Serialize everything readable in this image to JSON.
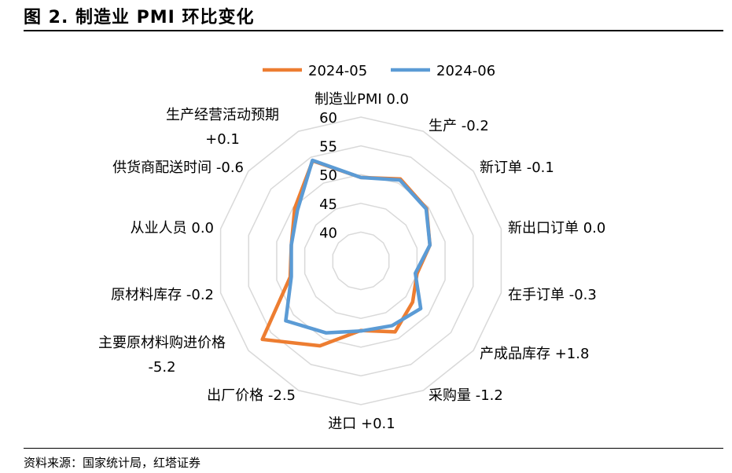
{
  "figure": {
    "title": "图 2. 制造业 PMI 环比变化",
    "source": "资料来源：国家统计局，红塔证券"
  },
  "chart_data": {
    "type": "radar",
    "categories": [
      "制造业PMI 0.0",
      "生产 -0.2",
      "新订单 -0.1",
      "新出口订单 0.0",
      "在手订单 -0.3",
      "产成品库存 +1.8",
      "采购量 -1.2",
      "进口 +0.1",
      "出厂价格 -2.5",
      "主要原材料购进价格 -5.2",
      "原材料库存 -0.2",
      "从业人员 0.0",
      "供货商配送时间 -0.6",
      "生产经营活动预期 +0.1"
    ],
    "r_ticks": [
      "40",
      "45",
      "50",
      "55",
      "60"
    ],
    "rlim": [
      35,
      60
    ],
    "grid": true,
    "legend_position": "top",
    "series": [
      {
        "name": "2024-05",
        "color": "#ED7D31",
        "values": [
          49.5,
          50.8,
          49.6,
          47.3,
          45.0,
          46.5,
          48.7,
          47.1,
          51.4,
          56.9,
          47.6,
          47.4,
          49.7,
          54.3
        ]
      },
      {
        "name": "2024-06",
        "color": "#5B9BD5",
        "values": [
          49.5,
          50.6,
          49.5,
          47.3,
          44.7,
          48.3,
          47.5,
          47.2,
          48.9,
          51.7,
          47.4,
          47.4,
          49.1,
          54.4
        ]
      }
    ]
  }
}
